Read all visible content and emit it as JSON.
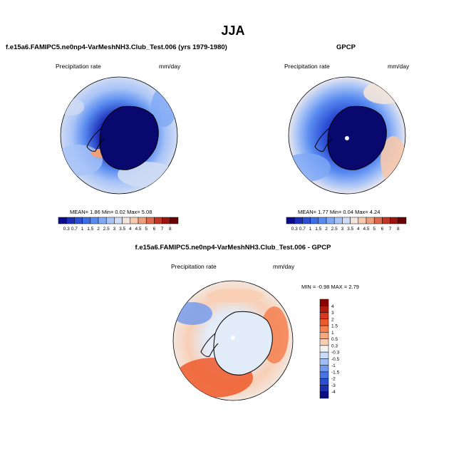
{
  "figure": {
    "title": "JJA",
    "colors": {
      "low": "#0a0a8c",
      "high": "#8b0000",
      "neutral": "#f2f2f2",
      "land_outline": "#000000"
    }
  },
  "panels": {
    "model": {
      "title": "f.e15a6.FAMIPC5.ne0np4-VarMeshNH3.Club_Test.006 (yrs 1979-1980)",
      "variable": "Precipitation rate",
      "units": "mm/day",
      "stats": {
        "mean_label": "MEAN=",
        "mean": "1.86",
        "min_label": "Min=",
        "min": "0.02",
        "max_label": "Max=",
        "max": "5.08"
      },
      "colorbar_labels": [
        "0.3",
        "0.7",
        "1",
        "1.5",
        "2",
        "2.5",
        "3",
        "3.5",
        "4",
        "4.5",
        "5",
        "6",
        "7",
        "8"
      ]
    },
    "obs": {
      "title": "GPCP",
      "variable": "Precipitation rate",
      "units": "mm/day",
      "stats": {
        "mean_label": "MEAN=",
        "mean": "1.77",
        "min_label": "Min=",
        "min": "0.04",
        "max_label": "Max=",
        "max": "4.24"
      },
      "colorbar_labels": [
        "0.3",
        "0.7",
        "1",
        "1.5",
        "2",
        "2.5",
        "3",
        "3.5",
        "4",
        "4.5",
        "5",
        "6",
        "7",
        "8"
      ]
    },
    "diff": {
      "title": "f.e15a6.FAMIPC5.ne0np4-VarMeshNH3.Club_Test.006 - GPCP",
      "variable": "Precipitation rate",
      "units": "mm/day",
      "stats": {
        "min_label": "MIN =",
        "min": "-0.98",
        "max_label": "MAX =",
        "max": "2.79"
      },
      "colorbar_labels": [
        "4",
        "3",
        "2",
        "1.5",
        "1",
        "0.5",
        "0.3",
        "-0.3",
        "-0.5",
        "-1",
        "-1.5",
        "-2",
        "-3",
        "-4"
      ]
    }
  },
  "scales": {
    "precip_colors": [
      "#0b0b8f",
      "#1d2fb8",
      "#2c4fd6",
      "#3d6ee6",
      "#5a8cf0",
      "#7ea8f5",
      "#a7c3f7",
      "#cfdbf4",
      "#f2e4da",
      "#f6c8ad",
      "#ee9f7c",
      "#dd6a4b",
      "#c23622",
      "#9b1411",
      "#6b0000"
    ],
    "diff_colors": [
      "#8b0000",
      "#b31a10",
      "#d8391c",
      "#ee5a2c",
      "#f58050",
      "#f7a880",
      "#f8cfb5",
      "#f3f3f3",
      "#c9dbf7",
      "#9fbdf4",
      "#6f98ee",
      "#4574e4",
      "#2a4fd0",
      "#1a2fae",
      "#0c0c82"
    ]
  }
}
